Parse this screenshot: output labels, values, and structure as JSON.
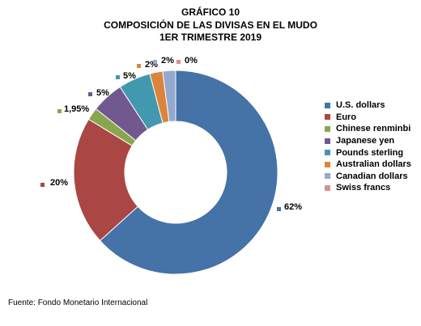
{
  "header": {
    "line1": "GRÁFICO 10",
    "line2": "COMPOSICIÓN DE LAS DIVISAS EN EL MUDO",
    "line3": "1ER TRIMESTRE 2019"
  },
  "chart_data": {
    "type": "donut",
    "title": "GRÁFICO 10 COMPOSICIÓN DE LAS DIVISAS EN EL MUDO 1ER TRIMESTRE 2019",
    "categories": [
      "U.S. dollars",
      "Euro",
      "Chinese renminbi",
      "Japanese yen",
      "Pounds sterling",
      "Australian dollars",
      "Canadian dollars",
      "Swiss francs"
    ],
    "values": [
      62,
      20,
      1.95,
      5,
      5,
      2,
      2,
      0
    ],
    "data_labels": [
      "62%",
      "20%",
      "1,95%",
      "5%",
      "5%",
      "2%",
      "2%",
      "0%"
    ],
    "colors": [
      "#4572A7",
      "#AA4643",
      "#89A54E",
      "#71588F",
      "#4198AF",
      "#DB843D",
      "#93A9CF",
      "#D19392"
    ],
    "legend_position": "right",
    "start": "top, clockwise"
  },
  "legend": {
    "items": [
      {
        "label": "U.S. dollars",
        "color": "#4572A7"
      },
      {
        "label": "Euro",
        "color": "#AA4643"
      },
      {
        "label": "Chinese renminbi",
        "color": "#89A54E"
      },
      {
        "label": "Japanese yen",
        "color": "#71588F"
      },
      {
        "label": "Pounds sterling",
        "color": "#4198AF"
      },
      {
        "label": "Australian dollars",
        "color": "#DB843D"
      },
      {
        "label": "Canadian dollars",
        "color": "#93A9CF"
      },
      {
        "label": "Swiss francs",
        "color": "#D19392"
      }
    ]
  },
  "footer": {
    "source": "Fuente: Fondo Monetario Internacional"
  }
}
